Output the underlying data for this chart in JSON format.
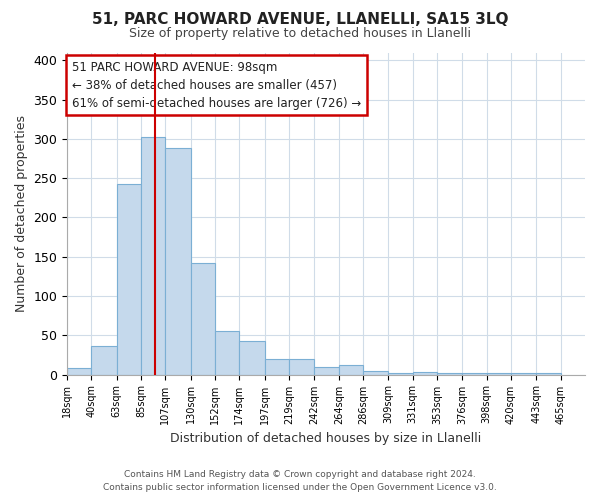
{
  "title": "51, PARC HOWARD AVENUE, LLANELLI, SA15 3LQ",
  "subtitle": "Size of property relative to detached houses in Llanelli",
  "xlabel": "Distribution of detached houses by size in Llanelli",
  "ylabel": "Number of detached properties",
  "bar_values": [
    8,
    37,
    242,
    303,
    288,
    142,
    55,
    43,
    20,
    20,
    10,
    12,
    5,
    2,
    3,
    2,
    2,
    2,
    2,
    2
  ],
  "bin_labels": [
    "18sqm",
    "40sqm",
    "63sqm",
    "85sqm",
    "107sqm",
    "130sqm",
    "152sqm",
    "174sqm",
    "197sqm",
    "219sqm",
    "242sqm",
    "264sqm",
    "286sqm",
    "309sqm",
    "331sqm",
    "353sqm",
    "376sqm",
    "398sqm",
    "420sqm",
    "443sqm",
    "465sqm"
  ],
  "bin_edges": [
    18,
    40,
    63,
    85,
    107,
    130,
    152,
    174,
    197,
    219,
    242,
    264,
    286,
    309,
    331,
    353,
    376,
    398,
    420,
    443,
    465
  ],
  "bar_color": "#c5d9ec",
  "bar_edge_color": "#7bafd4",
  "property_value": 98,
  "property_label": "51 PARC HOWARD AVENUE: 98sqm",
  "arrow_left_text": "← 38% of detached houses are smaller (457)",
  "arrow_right_text": "61% of semi-detached houses are larger (726) →",
  "red_line_color": "#cc0000",
  "ylim": [
    0,
    410
  ],
  "yticks": [
    0,
    50,
    100,
    150,
    200,
    250,
    300,
    350,
    400
  ],
  "footer_line1": "Contains HM Land Registry data © Crown copyright and database right 2024.",
  "footer_line2": "Contains public sector information licensed under the Open Government Licence v3.0.",
  "background_color": "#ffffff",
  "grid_color": "#d0dce8",
  "annotation_box_color": "#ffffff",
  "annotation_box_edge": "#cc0000",
  "title_fontsize": 11,
  "subtitle_fontsize": 9
}
